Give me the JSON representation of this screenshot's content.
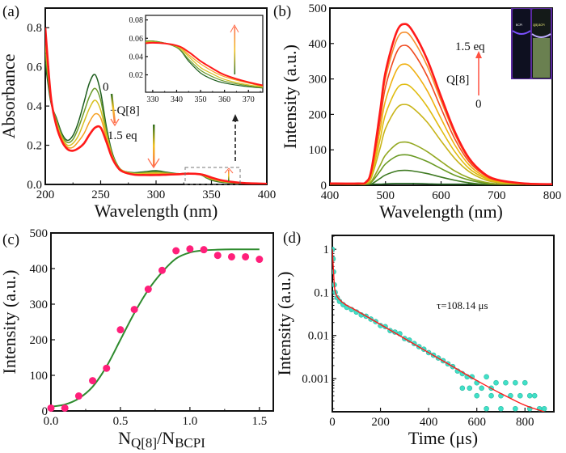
{
  "panels": {
    "a": {
      "label": "(a)",
      "ann_zero": "0",
      "ann_q8": "+Q[8]",
      "ann_eq": "1.5 eq"
    },
    "b": {
      "label": "(b)",
      "ann_eq": "1.5 eq",
      "ann_q8": "Q[8]",
      "ann_zero": "0",
      "photo_left": "BCPI",
      "photo_right": "Q[8]-BCPI"
    },
    "c": {
      "label": "(c)"
    },
    "d": {
      "label": "(d)",
      "tau": "τ=108.14 μs"
    }
  },
  "colors": {
    "green": "#1e5e1e",
    "red": "#ff1a1a",
    "pink": "#ff1f7a",
    "cyan": "#40e0c8",
    "fit_green": "#2e8b2e"
  },
  "chart_data": [
    {
      "id": "a",
      "type": "line",
      "xlabel": "Wavelength (nm)",
      "ylabel": "Absorbance",
      "xlim": [
        200,
        400
      ],
      "ylim": [
        0,
        0.9
      ],
      "xticks": [
        200,
        250,
        300,
        350,
        400
      ],
      "xtick_labels": [
        "200",
        "250",
        "300",
        "350",
        "400"
      ],
      "yticks": [
        0,
        0.2,
        0.4,
        0.6,
        0.8
      ],
      "ytick_labels": [
        "0.0",
        "0.2",
        "0.4",
        "0.6",
        "0.8"
      ],
      "x": [
        200,
        205,
        210,
        215,
        220,
        225,
        230,
        235,
        240,
        245,
        250,
        255,
        260,
        265,
        270,
        280,
        290,
        300,
        310,
        320,
        330,
        340,
        345,
        350,
        355,
        360,
        370,
        380,
        400
      ],
      "series": [
        {
          "color": "#1e5e1e",
          "values": [
            0.62,
            0.42,
            0.34,
            0.26,
            0.225,
            0.25,
            0.32,
            0.42,
            0.52,
            0.56,
            0.47,
            0.3,
            0.17,
            0.1,
            0.07,
            0.06,
            0.065,
            0.07,
            0.062,
            0.055,
            0.057,
            0.05,
            0.035,
            0.022,
            0.015,
            0.011,
            0.007,
            0.005,
            0.003
          ]
        },
        {
          "color": "#6b9a2a",
          "values": [
            0.665,
            0.43,
            0.33,
            0.25,
            0.214,
            0.23,
            0.29,
            0.37,
            0.45,
            0.49,
            0.43,
            0.28,
            0.16,
            0.1,
            0.07,
            0.058,
            0.061,
            0.065,
            0.059,
            0.054,
            0.057,
            0.05,
            0.037,
            0.025,
            0.018,
            0.013,
            0.008,
            0.005,
            0.003
          ]
        },
        {
          "color": "#d6c020",
          "values": [
            0.71,
            0.44,
            0.32,
            0.24,
            0.2,
            0.21,
            0.25,
            0.32,
            0.39,
            0.43,
            0.38,
            0.26,
            0.155,
            0.095,
            0.07,
            0.055,
            0.057,
            0.059,
            0.056,
            0.054,
            0.056,
            0.051,
            0.04,
            0.028,
            0.021,
            0.015,
            0.009,
            0.006,
            0.003
          ]
        },
        {
          "color": "#f5a020",
          "values": [
            0.755,
            0.44,
            0.31,
            0.23,
            0.19,
            0.19,
            0.22,
            0.26,
            0.32,
            0.36,
            0.34,
            0.24,
            0.15,
            0.09,
            0.065,
            0.052,
            0.052,
            0.054,
            0.053,
            0.053,
            0.055,
            0.052,
            0.042,
            0.032,
            0.024,
            0.018,
            0.011,
            0.006,
            0.003
          ]
        },
        {
          "color": "#ff1a1a",
          "values": [
            0.8,
            0.45,
            0.3,
            0.22,
            0.18,
            0.172,
            0.185,
            0.21,
            0.255,
            0.29,
            0.29,
            0.22,
            0.14,
            0.09,
            0.065,
            0.05,
            0.048,
            0.048,
            0.05,
            0.052,
            0.055,
            0.052,
            0.045,
            0.035,
            0.027,
            0.02,
            0.012,
            0.007,
            0.003
          ]
        }
      ],
      "inset": {
        "xlim": [
          327,
          376
        ],
        "ylim": [
          0.001,
          0.085
        ],
        "xticks": [
          330,
          340,
          350,
          360,
          370
        ],
        "xtick_labels": [
          "330",
          "340",
          "350",
          "360",
          "370"
        ],
        "yticks": [
          0.02,
          0.04,
          0.06,
          0.08
        ],
        "ytick_labels": [
          "0.02",
          "0.04",
          "0.06",
          "0.08"
        ]
      }
    },
    {
      "id": "b",
      "type": "line",
      "xlabel": "Wavelength (nm)",
      "ylabel": "Intensity (a.u.)",
      "xlim": [
        400,
        800
      ],
      "ylim": [
        0,
        500
      ],
      "xticks": [
        400,
        500,
        600,
        700,
        800
      ],
      "xtick_labels": [
        "400",
        "500",
        "600",
        "700",
        "800"
      ],
      "yticks": [
        0,
        100,
        200,
        300,
        400,
        500
      ],
      "ytick_labels": [
        "0",
        "100",
        "200",
        "300",
        "400",
        "500"
      ],
      "x": [
        400,
        450,
        465,
        475,
        490,
        500,
        520,
        535,
        550,
        575,
        600,
        625,
        650,
        675,
        700,
        750,
        800
      ],
      "series": [
        {
          "color": "#1e5e1e",
          "values": [
            3,
            3,
            3,
            3,
            3,
            4,
            5,
            5,
            5,
            4,
            3,
            3,
            3,
            3,
            3,
            3,
            3
          ]
        },
        {
          "color": "#3f7a22",
          "values": [
            3,
            3,
            3,
            4,
            19,
            29,
            40,
            42,
            40,
            33,
            23,
            14,
            7,
            3,
            3,
            3,
            3
          ]
        },
        {
          "color": "#6a9a24",
          "values": [
            3,
            3,
            3,
            9,
            39,
            60,
            82,
            86,
            82,
            67,
            47,
            28,
            15,
            7,
            3,
            3,
            3
          ]
        },
        {
          "color": "#93a820",
          "values": [
            3,
            3,
            3,
            12,
            55,
            85,
            116,
            122,
            116,
            95,
            67,
            40,
            21,
            10,
            4,
            3,
            3
          ]
        },
        {
          "color": "#c8b418",
          "values": [
            3,
            3,
            5,
            23,
            103,
            160,
            217,
            228,
            217,
            178,
            125,
            75,
            39,
            18,
            8,
            3,
            3
          ]
        },
        {
          "color": "#e0bc10",
          "values": [
            3,
            3,
            6,
            29,
            128,
            200,
            271,
            285,
            271,
            222,
            157,
            94,
            48,
            23,
            10,
            3,
            3
          ]
        },
        {
          "color": "#f0b010",
          "values": [
            4,
            4,
            7,
            34,
            154,
            239,
            325,
            342,
            325,
            267,
            188,
            113,
            58,
            27,
            12,
            4,
            3
          ]
        },
        {
          "color": "#f04a20",
          "values": [
            4,
            4,
            8,
            40,
            178,
            277,
            375,
            395,
            375,
            308,
            217,
            130,
            67,
            32,
            14,
            4,
            3
          ]
        },
        {
          "color": "#f59030",
          "values": [
            4,
            4,
            9,
            43,
            194,
            302,
            410,
            432,
            410,
            337,
            238,
            143,
            73,
            35,
            15,
            4,
            3
          ]
        },
        {
          "color": "#ff1a1a",
          "values": [
            5,
            5,
            9,
            46,
            205,
            319,
            432,
            455,
            432,
            355,
            250,
            150,
            77,
            36,
            16,
            5,
            3
          ]
        }
      ]
    },
    {
      "id": "c",
      "type": "scatter",
      "xlabel": "N_Q[8]/N_BCPI",
      "xlabel_main1": "N",
      "xlabel_sub1": "Q[8]",
      "xlabel_main2": "/N",
      "xlabel_sub2": "BCPI",
      "ylabel": "Intensity (a.u.)",
      "xlim": [
        0,
        1.6
      ],
      "ylim": [
        0,
        500
      ],
      "xticks": [
        0,
        0.5,
        1.0,
        1.5
      ],
      "xtick_labels": [
        "0.0",
        "0.5",
        "1.0",
        "1.5"
      ],
      "yticks": [
        0,
        100,
        200,
        300,
        400,
        500
      ],
      "ytick_labels": [
        "0",
        "100",
        "200",
        "300",
        "400",
        "500"
      ],
      "points": {
        "x": [
          0,
          0.1,
          0.2,
          0.3,
          0.4,
          0.5,
          0.6,
          0.7,
          0.8,
          0.9,
          1.0,
          1.1,
          1.2,
          1.3,
          1.4,
          1.5
        ],
        "y": [
          8,
          8,
          42,
          85,
          120,
          228,
          285,
          342,
          395,
          450,
          455,
          453,
          437,
          433,
          433,
          426
        ]
      },
      "fit": {
        "x": [
          0,
          0.1,
          0.2,
          0.3,
          0.4,
          0.5,
          0.6,
          0.7,
          0.8,
          0.9,
          1.0,
          1.1,
          1.2,
          1.3,
          1.4,
          1.5
        ],
        "y": [
          12,
          18,
          35,
          68,
          125,
          200,
          275,
          340,
          390,
          428,
          445,
          451,
          453,
          454,
          454,
          454
        ]
      }
    },
    {
      "id": "d",
      "type": "scatter",
      "xlabel": "Time (μs)",
      "ylabel": "Intensity (a.u.)",
      "xlim": [
        0,
        920
      ],
      "ylim": [
        0.00017,
        2.1
      ],
      "yscale": "log",
      "xticks": [
        0,
        200,
        400,
        600,
        800
      ],
      "xtick_labels": [
        "0",
        "200",
        "400",
        "600",
        "800"
      ],
      "yticks": [
        1,
        0.1,
        0.01,
        0.001
      ],
      "ytick_labels": [
        "1",
        "0.1",
        "0.01",
        "0.001"
      ],
      "points": [
        [
          0,
          1
        ],
        [
          3,
          0.6
        ],
        [
          5,
          0.3
        ],
        [
          8,
          0.15
        ],
        [
          12,
          0.1
        ],
        [
          20,
          0.075
        ],
        [
          30,
          0.062
        ],
        [
          45,
          0.052
        ],
        [
          60,
          0.045
        ],
        [
          80,
          0.04
        ],
        [
          100,
          0.035
        ],
        [
          120,
          0.03
        ],
        [
          140,
          0.028
        ],
        [
          160,
          0.024
        ],
        [
          180,
          0.021
        ],
        [
          200,
          0.017
        ],
        [
          220,
          0.016
        ],
        [
          240,
          0.013
        ],
        [
          260,
          0.012
        ],
        [
          280,
          0.011
        ],
        [
          300,
          0.0085
        ],
        [
          320,
          0.0078
        ],
        [
          340,
          0.0065
        ],
        [
          360,
          0.0055
        ],
        [
          380,
          0.0048
        ],
        [
          400,
          0.004
        ],
        [
          420,
          0.0035
        ],
        [
          440,
          0.003
        ],
        [
          460,
          0.0026
        ],
        [
          480,
          0.0022
        ],
        [
          500,
          0.0019
        ],
        [
          520,
          0.0015
        ],
        [
          540,
          0.0013
        ],
        [
          560,
          0.0011
        ],
        [
          580,
          0.0011
        ],
        [
          600,
          0.0008
        ],
        [
          620,
          0.0006
        ],
        [
          640,
          0.0011
        ],
        [
          660,
          0.0006
        ],
        [
          680,
          0.0008
        ],
        [
          700,
          0.0004
        ],
        [
          720,
          0.0008
        ],
        [
          740,
          0.0004
        ],
        [
          760,
          0.0008
        ],
        [
          780,
          0.0004
        ],
        [
          800,
          0.0008
        ],
        [
          820,
          0.0004
        ],
        [
          840,
          0.0004
        ],
        [
          860,
          0.0002
        ],
        [
          880,
          0.0002
        ],
        [
          640,
          0.0002
        ],
        [
          700,
          0.0002
        ],
        [
          760,
          0.0002
        ],
        [
          820,
          0.0002
        ],
        [
          600,
          0.0004
        ],
        [
          660,
          0.0004
        ],
        [
          540,
          0.0006
        ],
        [
          570,
          0.0006
        ]
      ],
      "fit": {
        "x": [
          0,
          5,
          10,
          20,
          40,
          60,
          100,
          200,
          300,
          400,
          500,
          600,
          700,
          800,
          880
        ],
        "y": [
          1,
          0.3,
          0.12,
          0.08,
          0.06,
          0.05,
          0.038,
          0.018,
          0.0085,
          0.004,
          0.0019,
          0.0009,
          0.00045,
          0.00024,
          0.00017
        ]
      }
    }
  ]
}
